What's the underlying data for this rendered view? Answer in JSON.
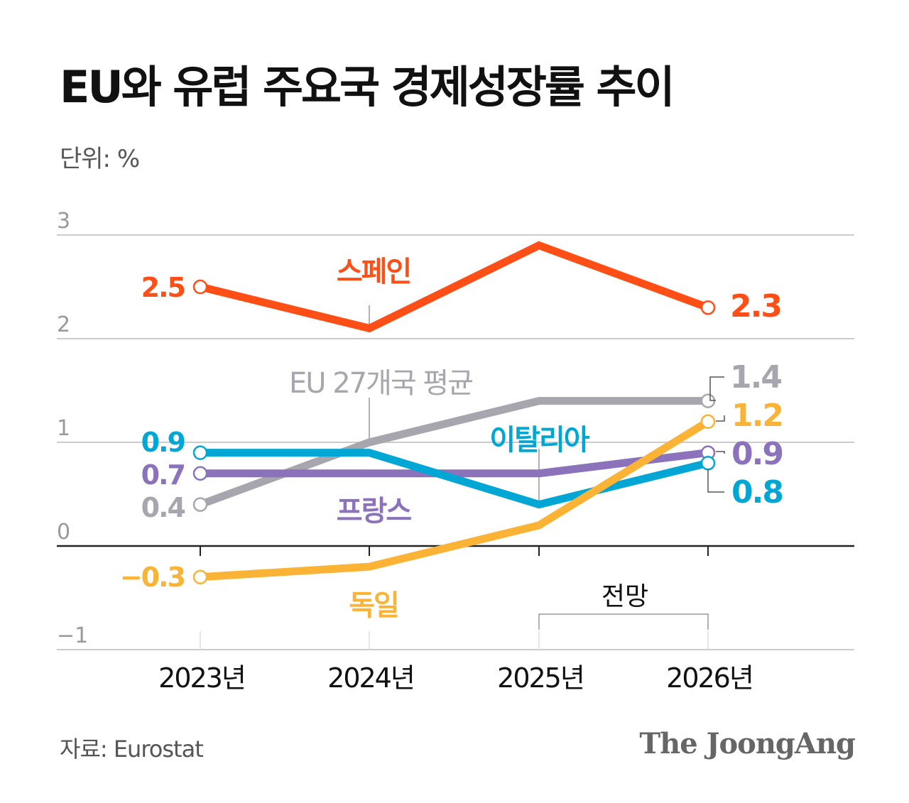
{
  "title": "EU와 유럽 주요국 경제성장률 추이",
  "unit_label": "단위: %",
  "source": "자료: Eurostat",
  "logo": "The JoongAng",
  "chart_data": {
    "type": "line",
    "categories": [
      "2023년",
      "2024년",
      "2025년",
      "2026년"
    ],
    "ylim": [
      -1,
      3
    ],
    "yticks": [
      "3",
      "2",
      "1",
      "0",
      "−1"
    ],
    "grid": true,
    "forecast_label": "전망",
    "forecast_range": [
      "2025년",
      "2026년"
    ],
    "series": [
      {
        "name": "스페인",
        "color": "#ff4f17",
        "values": [
          2.5,
          2.1,
          2.9,
          2.3
        ],
        "start_label": "2.5",
        "end_label": "2.3"
      },
      {
        "name": "EU 27개국 평균",
        "color": "#a7a6ae",
        "values": [
          0.4,
          1.0,
          1.4,
          1.4
        ],
        "start_label": "0.4",
        "end_label": "1.4"
      },
      {
        "name": "이탈리아",
        "color": "#00a7d4",
        "values": [
          0.9,
          0.9,
          0.4,
          0.8
        ],
        "start_label": "0.9",
        "end_label": "0.8"
      },
      {
        "name": "프랑스",
        "color": "#8b72ba",
        "values": [
          0.7,
          0.7,
          0.7,
          0.9
        ],
        "start_label": "0.7",
        "end_label": "0.9"
      },
      {
        "name": "독일",
        "color": "#fbb335",
        "values": [
          -0.3,
          -0.2,
          0.2,
          1.2
        ],
        "start_label": "−0.3",
        "end_label": "1.2"
      }
    ]
  }
}
